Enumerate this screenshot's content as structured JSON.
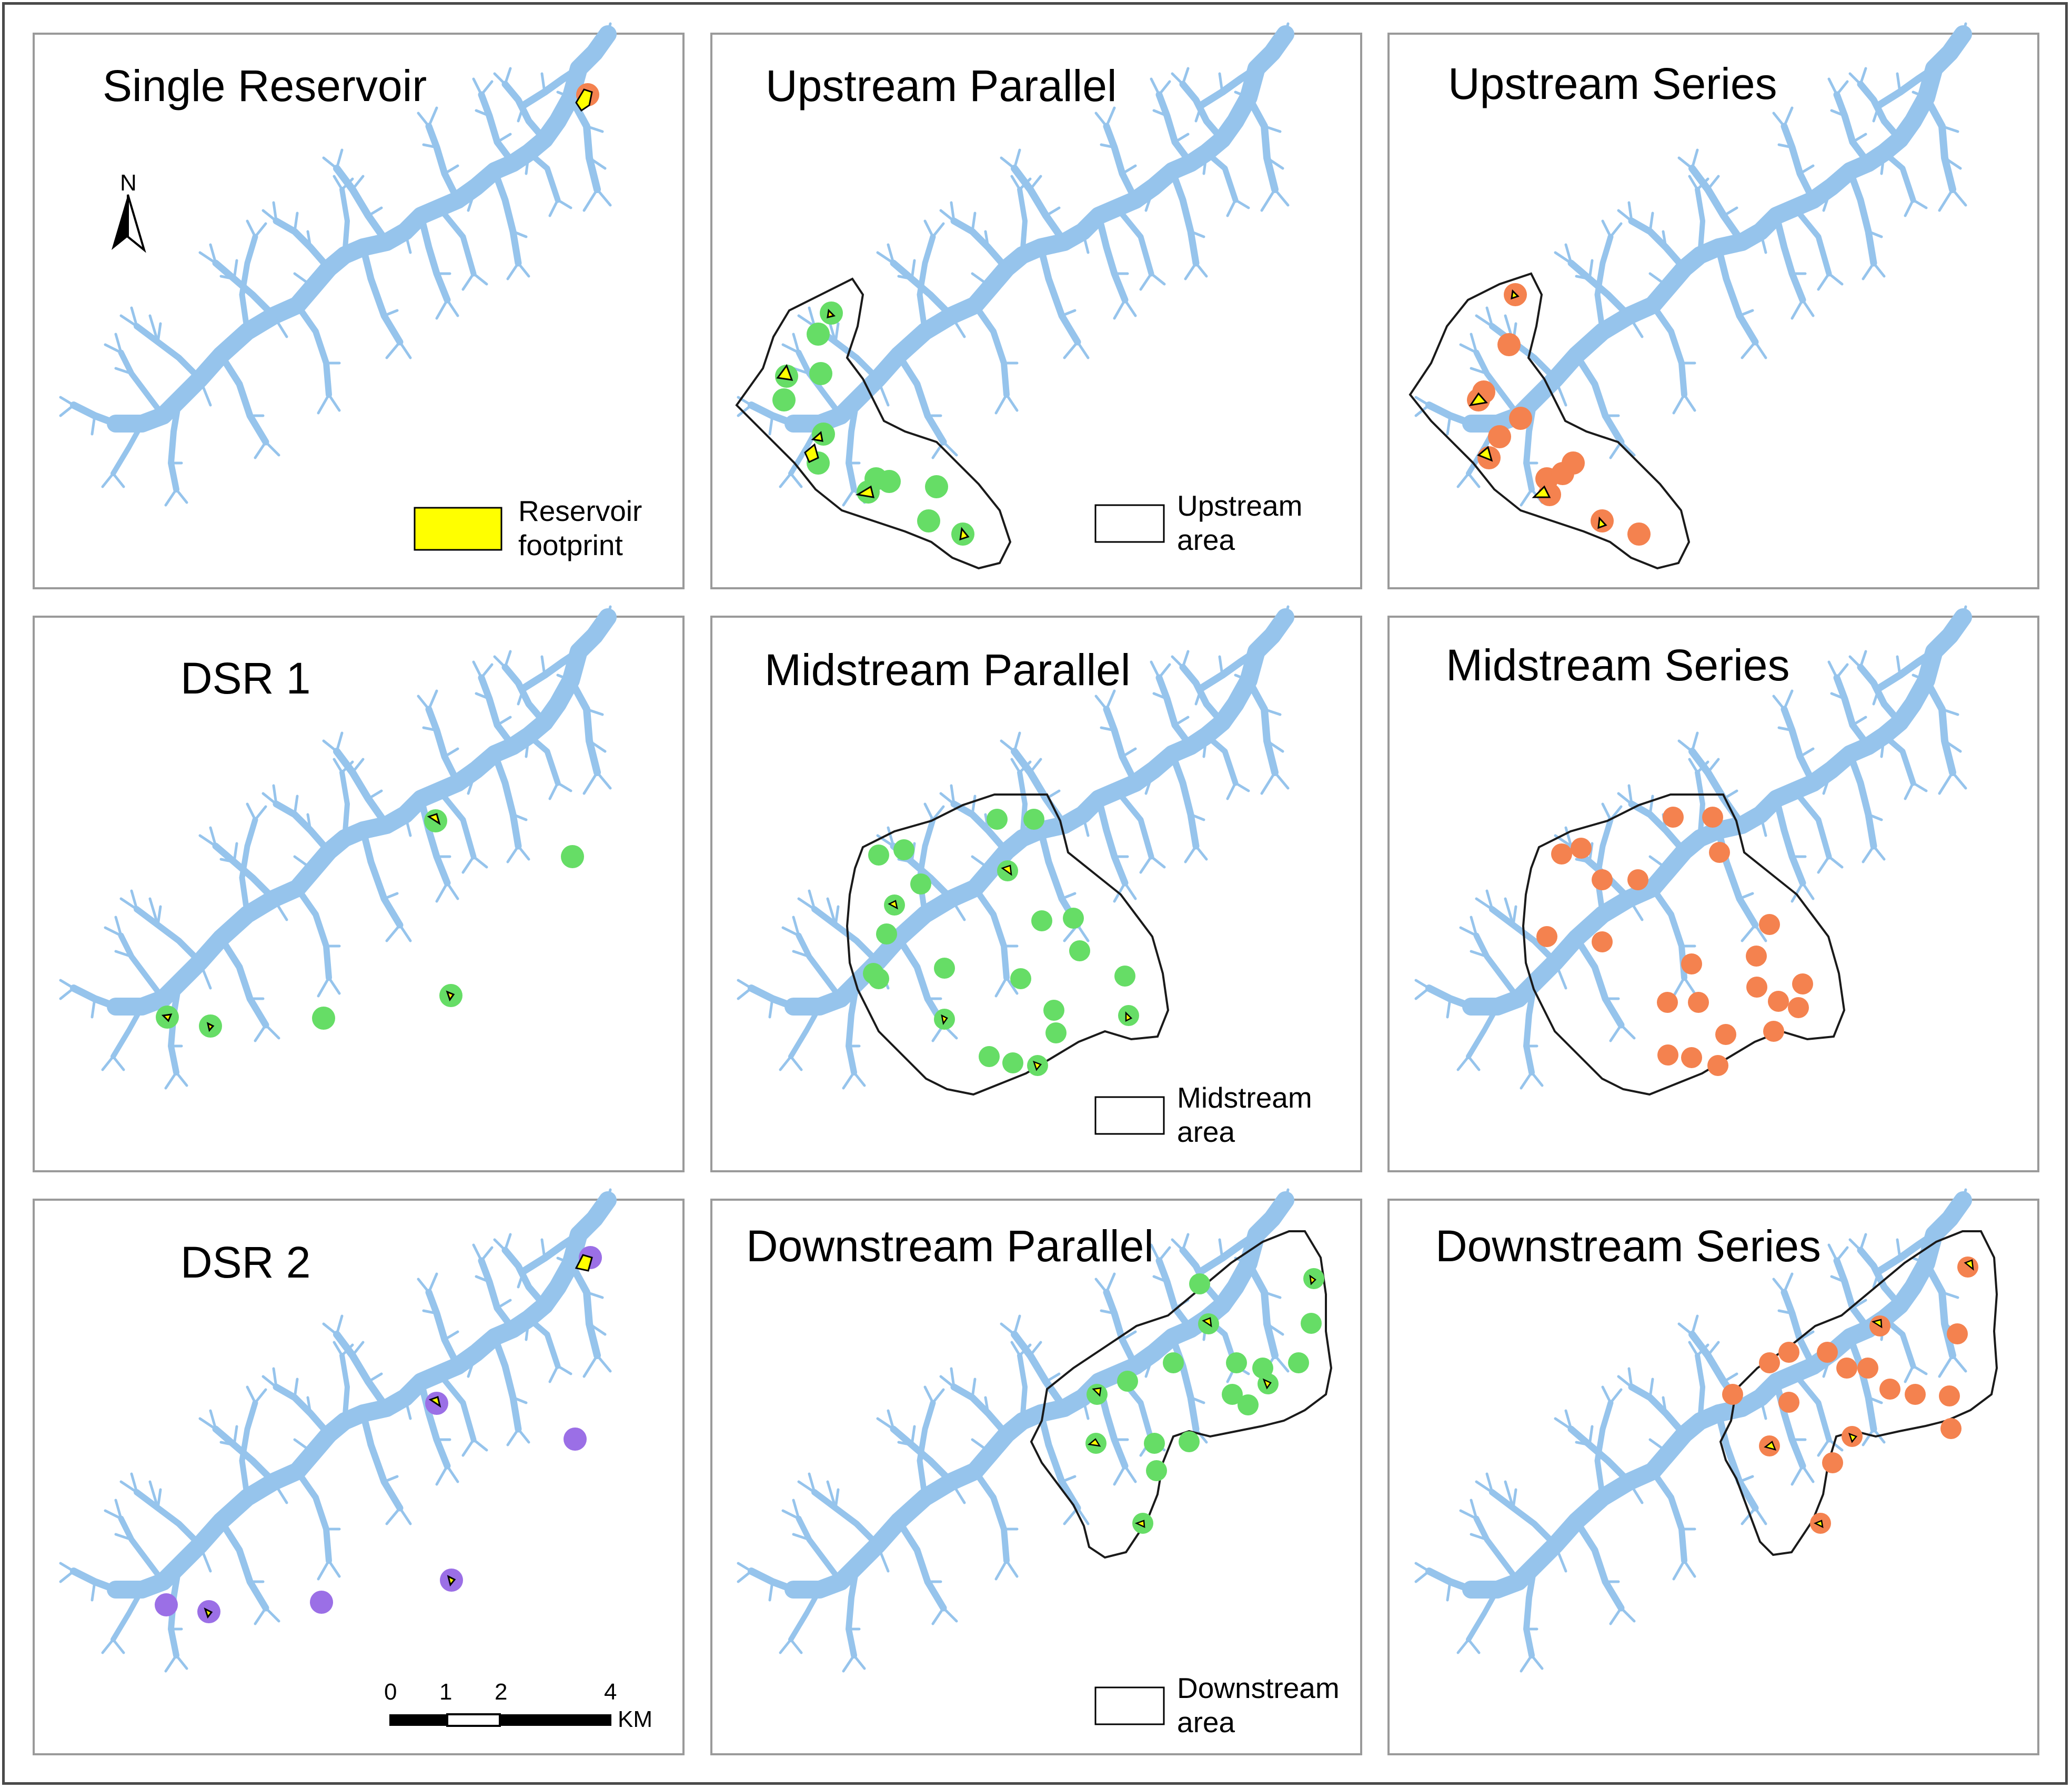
{
  "figure": {
    "panels": [
      {
        "id": "single-reservoir",
        "title": "Single Reservoir",
        "marker": "orange",
        "area": null
      },
      {
        "id": "upstream-parallel",
        "title": "Upstream Parallel",
        "marker": "green",
        "area": "upstream"
      },
      {
        "id": "upstream-series",
        "title": "Upstream Series",
        "marker": "orange",
        "area": "upstream"
      },
      {
        "id": "dsr-1",
        "title": "DSR 1",
        "marker": "green",
        "area": null
      },
      {
        "id": "midstream-parallel",
        "title": "Midstream Parallel",
        "marker": "green",
        "area": "midstream"
      },
      {
        "id": "midstream-series",
        "title": "Midstream Series",
        "marker": "orange",
        "area": "midstream"
      },
      {
        "id": "dsr-2",
        "title": "DSR 2",
        "marker": "purple",
        "area": null
      },
      {
        "id": "downstream-parallel",
        "title": "Downstream Parallel",
        "marker": "green",
        "area": "downstream"
      },
      {
        "id": "downstream-series",
        "title": "Downstream Series",
        "marker": "orange",
        "area": "downstream"
      }
    ],
    "north_arrow": {
      "label": "N"
    },
    "legend_reservoir": {
      "line1": "Reservoir",
      "line2": "footprint",
      "color": "#ffff00"
    },
    "legend_upstream": {
      "line1": "Upstream",
      "line2": "area"
    },
    "legend_midstream": {
      "line1": "Midstream",
      "line2": "area"
    },
    "legend_downstream": {
      "line1": "Downstream",
      "line2": "area"
    },
    "scale_bar": {
      "ticks": [
        "0",
        "1",
        "2",
        "4"
      ],
      "unit": "KM"
    },
    "colors": {
      "river": "#96c4ec",
      "green_marker": "#66dd66",
      "orange_marker": "#f4824f",
      "purple_marker": "#9b6fe6",
      "footprint": "#ffff00",
      "outline": "#000000"
    }
  }
}
